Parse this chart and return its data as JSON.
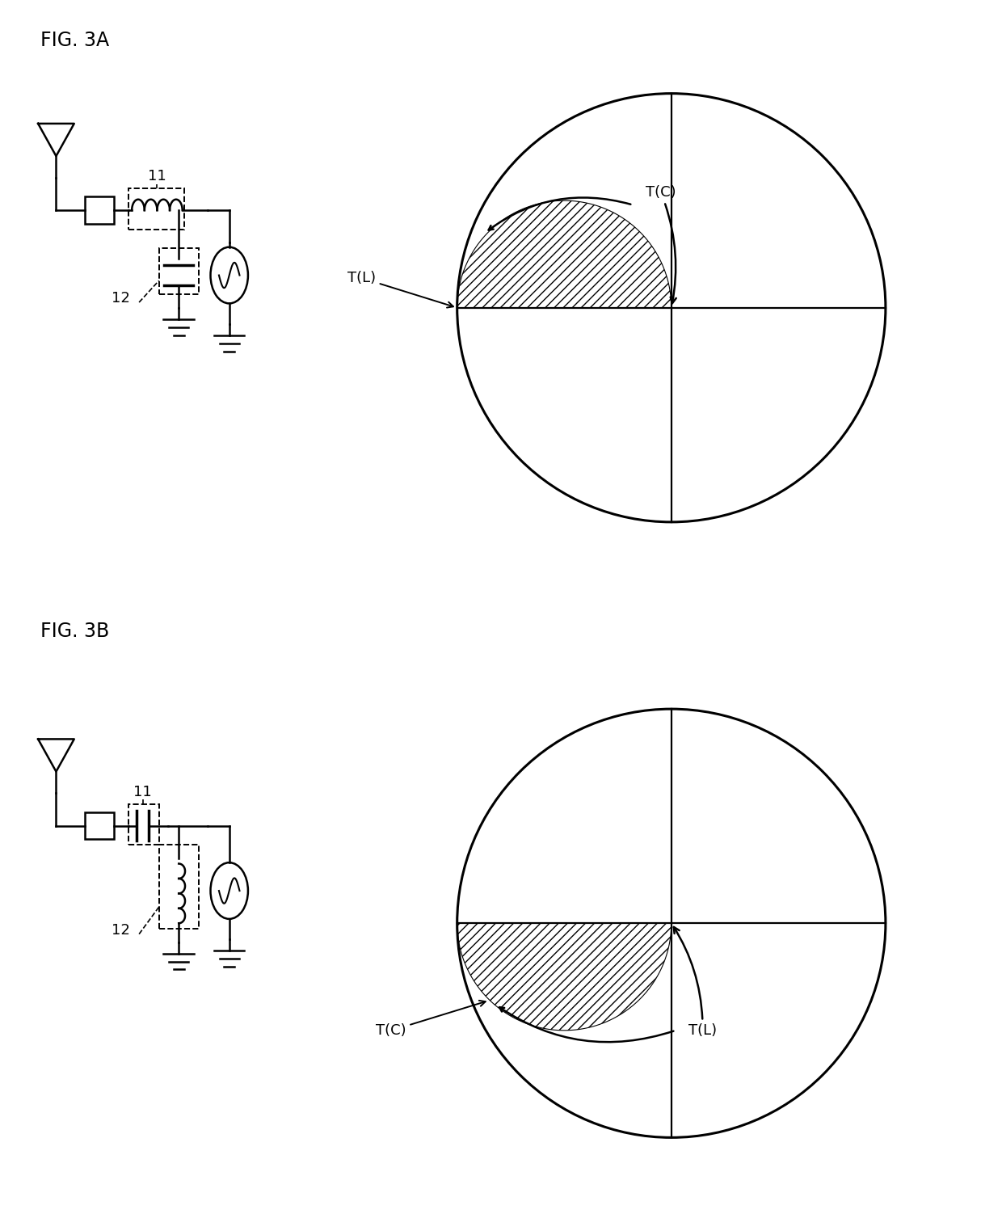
{
  "fig_label_a": "FIG. 3A",
  "fig_label_b": "FIG. 3B",
  "label_11": "11",
  "label_12": "12",
  "tc_label_a": "T(C)",
  "tl_label_a": "T(L)",
  "tc_label_b": "T(C)",
  "tl_label_b": "T(L)",
  "bg_color": "#ffffff",
  "line_color": "#000000",
  "hatch_pattern": "///",
  "figsize": [
    12.4,
    15.23
  ],
  "dpi": 100
}
